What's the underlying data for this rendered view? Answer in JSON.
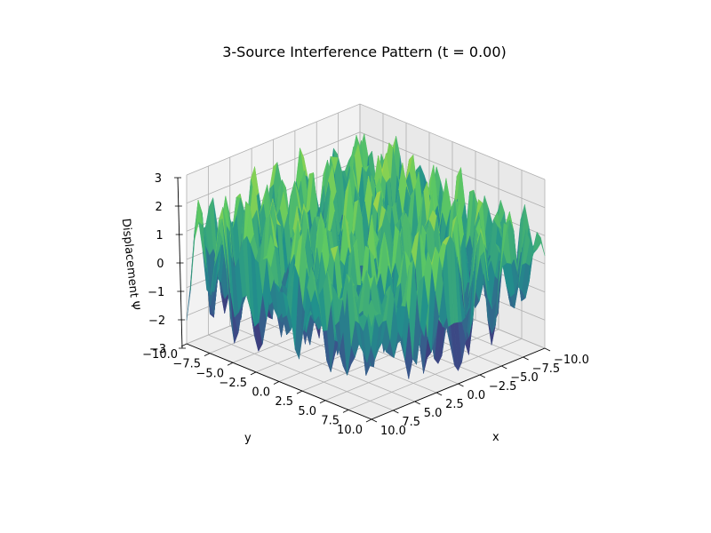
{
  "chart_data": {
    "type": "surface",
    "title": "3-Source Interference Pattern (t = 0.00)",
    "xlabel": "x",
    "ylabel": "y",
    "zlabel": "Displacement Ψ",
    "xlim": [
      -10,
      10
    ],
    "ylim": [
      -10,
      10
    ],
    "zlim": [
      -3,
      3
    ],
    "x_ticks": [
      "−10.0",
      "−7.5",
      "−5.0",
      "−2.5",
      "0.0",
      "2.5",
      "5.0",
      "7.5",
      "10.0"
    ],
    "y_ticks": [
      "−10.0",
      "−7.5",
      "−5.0",
      "−2.5",
      "0.0",
      "2.5",
      "5.0",
      "7.5",
      "10.0"
    ],
    "z_ticks": [
      "−3",
      "−2",
      "−1",
      "0",
      "1",
      "2",
      "3"
    ],
    "colormap": "viridis",
    "colormap_colors": [
      "#440154",
      "#3b528b",
      "#21918c",
      "#5ec962",
      "#fde725"
    ],
    "grid": true,
    "pane_color": "#f2f2f2",
    "grid_color": "#b0b0b0"
  }
}
